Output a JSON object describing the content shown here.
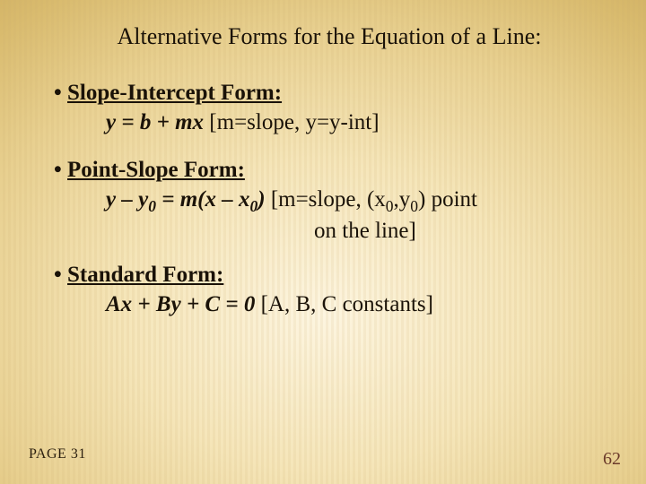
{
  "title": "Alternative Forms for the Equation of a Line:",
  "forms": {
    "slopeIntercept": {
      "heading": "Slope-Intercept Form:",
      "equation": "y = b + mx",
      "desc": "  [m=slope, y=y-int]"
    },
    "pointSlope": {
      "heading": "Point-Slope Form:",
      "eq_pre": "y – y",
      "eq_mid": " = m(x – x",
      "eq_post": ")",
      "sub0": "0",
      "desc1_pre": "  [m=slope, (x",
      "desc1_mid": ",y",
      "desc1_post": ") point",
      "desc2": "on the line]"
    },
    "standard": {
      "heading": "Standard Form:",
      "equation": "Ax + By + C = 0",
      "desc": "  [A, B, C constants]"
    }
  },
  "pageRef": "PAGE 31",
  "slideNum": "62",
  "colors": {
    "text": "#1a1208",
    "slideNum": "#6b3a2a",
    "bgLight": "#fdf5e0",
    "bgDark": "#b8924a"
  },
  "fontsize": {
    "title": 26,
    "body": 25,
    "pageRef": 16,
    "slideNum": 20
  }
}
